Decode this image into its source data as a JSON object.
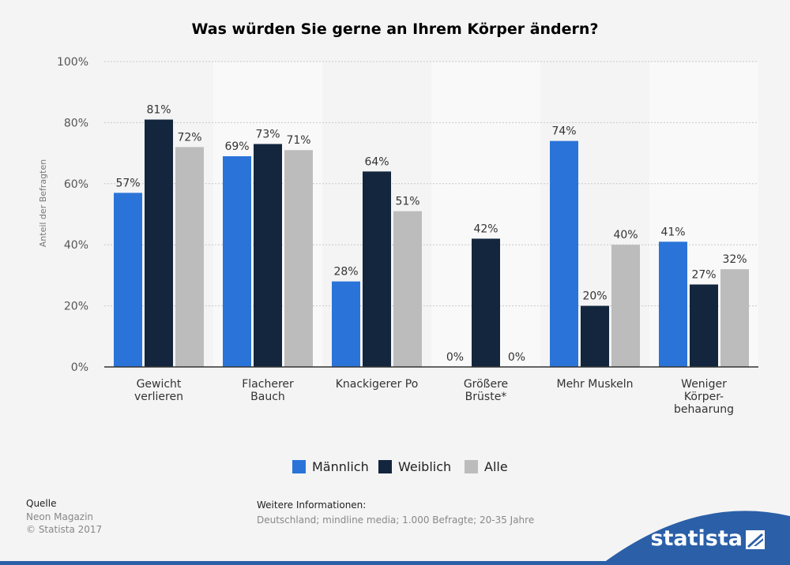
{
  "chart_data": {
    "type": "bar",
    "title": "Was würden Sie gerne an Ihrem Körper ändern?",
    "ylabel": "Anteil der Befragten",
    "ylim": [
      0,
      100
    ],
    "yticks": [
      "0%",
      "20%",
      "40%",
      "60%",
      "80%",
      "100%"
    ],
    "categories": [
      [
        "Gewicht",
        "verlieren"
      ],
      [
        "Flacherer",
        "Bauch"
      ],
      [
        "Knackigerer Po"
      ],
      [
        "Größere",
        "Brüste*"
      ],
      [
        "Mehr Muskeln"
      ],
      [
        "Weniger",
        "Körper-",
        "behaarung"
      ]
    ],
    "series": [
      {
        "name": "Männlich",
        "color": "#2a74d9",
        "values": [
          57,
          69,
          28,
          0,
          74,
          41
        ]
      },
      {
        "name": "Weiblich",
        "color": "#13263e",
        "values": [
          81,
          73,
          64,
          42,
          20,
          27
        ]
      },
      {
        "name": "Alle",
        "color": "#bcbcbc",
        "values": [
          72,
          71,
          51,
          0,
          40,
          32
        ]
      }
    ],
    "value_suffix": "%",
    "grid": true,
    "legend_position": "bottom"
  },
  "footer": {
    "source_label": "Quelle",
    "source_lines": [
      "Neon Magazin",
      "© Statista 2017"
    ],
    "info_label": "Weitere Informationen:",
    "info_text": "Deutschland; mindline media; 1.000 Befragte; 20-35 Jahre"
  },
  "brand": {
    "name": "statista",
    "color": "#2b5fa8"
  }
}
